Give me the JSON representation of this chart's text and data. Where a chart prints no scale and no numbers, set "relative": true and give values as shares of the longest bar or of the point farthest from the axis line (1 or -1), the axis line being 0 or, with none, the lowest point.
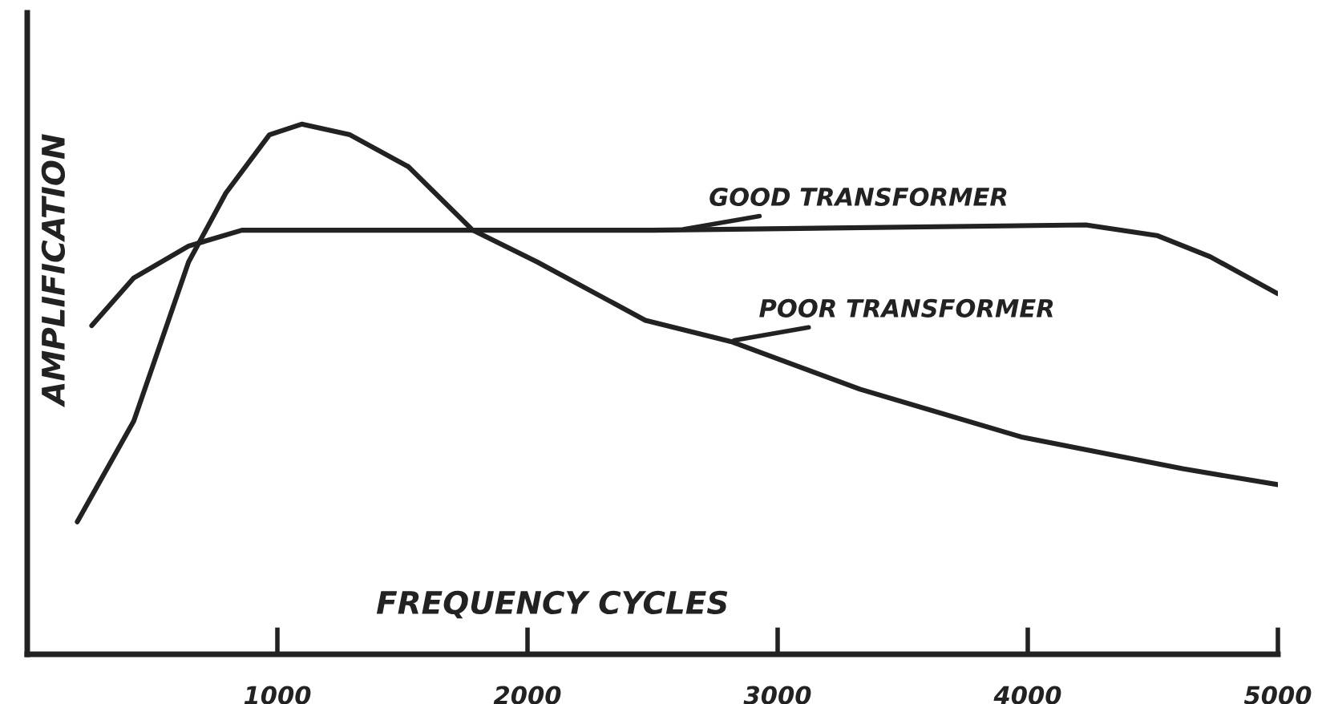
{
  "chart_data": {
    "type": "line",
    "xlabel": "FREQUENCY CYCLES",
    "ylabel": "AMPLIFICATION",
    "relative": true,
    "xlim": [
      0,
      5000
    ],
    "xticks": [
      1000,
      2000,
      3000,
      4000,
      5000
    ],
    "grid": false,
    "legend": false,
    "marker": "none",
    "line_style": "solid",
    "series": [
      {
        "color": "#222222",
        "x": [
          258,
          426,
          645,
          858,
          1006,
          2500,
          4232,
          4516,
          4729,
          5000
        ],
        "values": [
          0.62,
          0.71,
          0.77,
          0.8,
          0.8,
          0.8,
          0.81,
          0.79,
          0.75,
          0.68
        ]
      },
      {
        "color": "#222222",
        "x": [
          200,
          426,
          645,
          794,
          968,
          1097,
          1290,
          1523,
          1781,
          2039,
          2471,
          2813,
          3329,
          3974,
          4619,
          5000
        ],
        "values": [
          0.25,
          0.44,
          0.74,
          0.87,
          0.98,
          1.0,
          0.98,
          0.92,
          0.8,
          0.74,
          0.63,
          0.59,
          0.5,
          0.41,
          0.35,
          0.32
        ]
      }
    ],
    "annotations": [
      {
        "text": "GOOD TRANSFORMER",
        "x": 2600,
        "y": 0.8
      },
      {
        "text": "POOR TRANSFORMER",
        "x": 2800,
        "y": 0.59
      }
    ]
  }
}
